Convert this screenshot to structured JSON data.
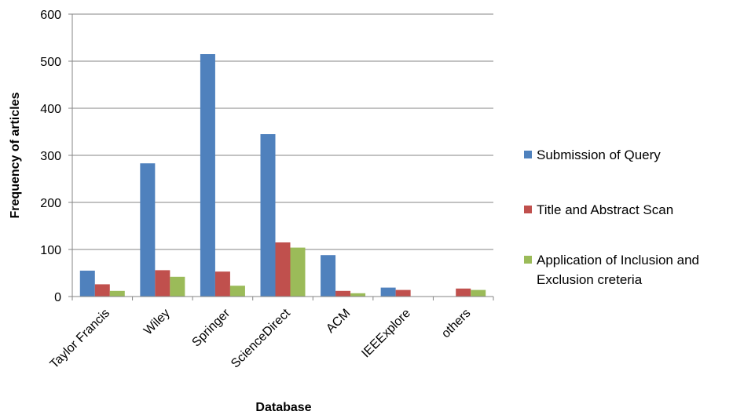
{
  "chart_data": {
    "type": "bar",
    "title": "",
    "xlabel": "Database",
    "ylabel": "Frequency of articles",
    "categories": [
      "Taylor Francis",
      "Wiley",
      "Springer",
      "ScienceDirect",
      "ACM",
      "IEEExplore",
      "others"
    ],
    "series": [
      {
        "name": "Submission of Query",
        "color": "#4f81bd",
        "values": [
          55,
          283,
          515,
          345,
          88,
          19,
          0
        ]
      },
      {
        "name": "Title and Abstract Scan",
        "color": "#c0504d",
        "values": [
          26,
          56,
          53,
          115,
          12,
          14,
          17
        ]
      },
      {
        "name": "Application of Inclusion and Exclusion creteria",
        "legend_lines": [
          "Application of Inclusion and",
          "Exclusion creteria"
        ],
        "color": "#9bbb59",
        "values": [
          12,
          42,
          23,
          104,
          7,
          0,
          14
        ]
      }
    ],
    "ylim": [
      0,
      600
    ],
    "yticks": [
      0,
      100,
      200,
      300,
      400,
      500,
      600
    ],
    "grid": true,
    "legend_position": "right"
  }
}
